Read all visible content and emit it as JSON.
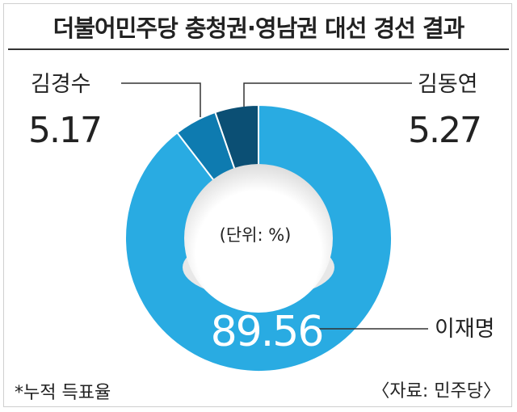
{
  "title": "더불어민주당 충청권·영남권 대선 경선 결과",
  "footer": {
    "note": "*누적 득표율",
    "source": "〈자료: 민주당〉"
  },
  "colors": {
    "lee": "#29abe2",
    "kimks": "#0e7bb0",
    "kimdy": "#0b4f74",
    "hole_shadow": "#e8e8e8"
  },
  "chart_data": {
    "type": "pie",
    "donut": true,
    "unit_note": "(단위: %)",
    "slices": [
      {
        "name": "이재명",
        "value_label": "89.56",
        "value": 89.56
      },
      {
        "name": "김경수",
        "value_label": "5.17",
        "value": 5.17
      },
      {
        "name": "김동연",
        "value_label": "5.27",
        "value": 5.27
      }
    ]
  }
}
